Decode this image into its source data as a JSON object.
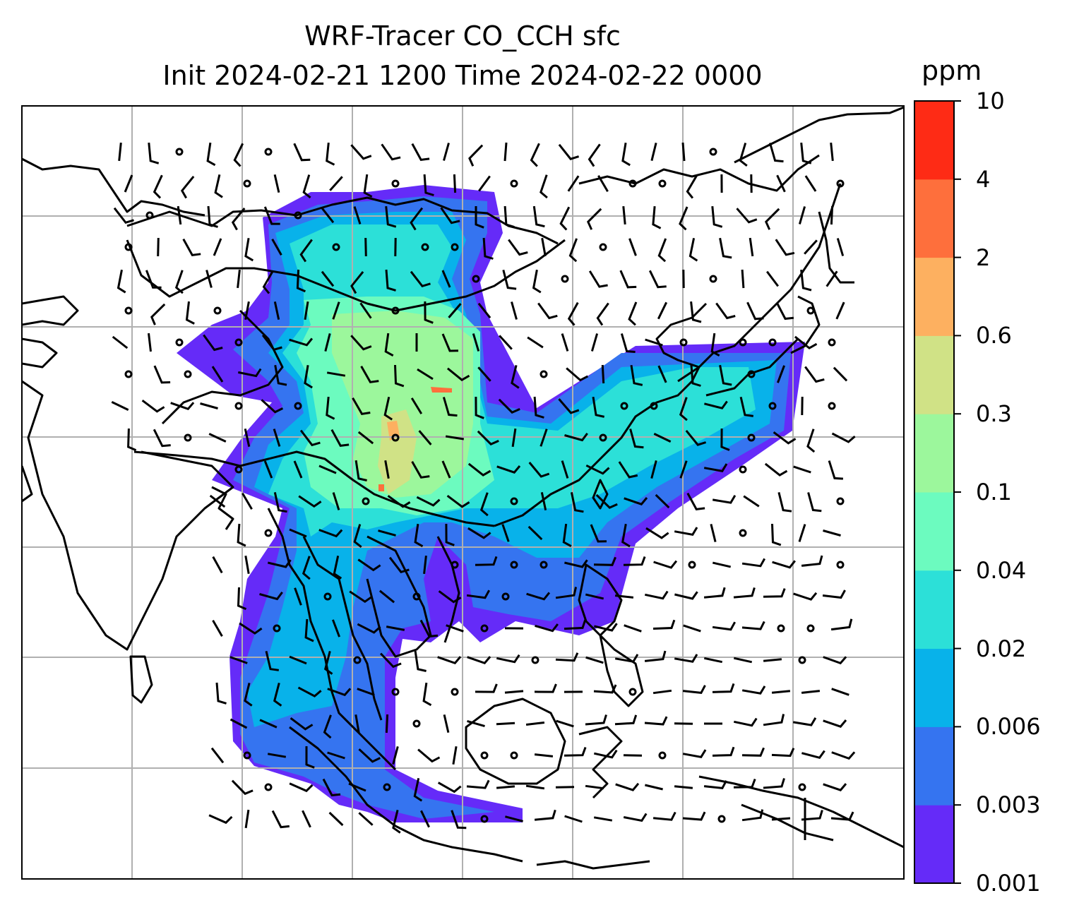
{
  "figure": {
    "title_line1": "WRF-Tracer CO_CCH sfc",
    "title_line2": "Init 2024-02-21 1200 Time 2024-02-22 0000"
  },
  "colorbar": {
    "unit": "ppm",
    "levels": [
      "0.001",
      "0.003",
      "0.006",
      "0.02",
      "0.04",
      "0.1",
      "0.3",
      "0.6",
      "2",
      "4",
      "10"
    ],
    "colors": [
      "#652bf8",
      "#3574f0",
      "#08b2ea",
      "#2ce0d8",
      "#6cfbbf",
      "#9cf79c",
      "#d0e286",
      "#fdb060",
      "#fe6f3c",
      "#fe2b15"
    ]
  },
  "map": {
    "gridline_color": "#b0b0b0",
    "coastline_color": "#000000",
    "overlay": "wind barbs",
    "field": "CO_CCH surface tracer concentration"
  }
}
